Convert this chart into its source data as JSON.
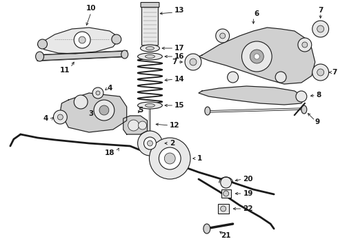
{
  "background_color": "#ffffff",
  "fig_width": 4.9,
  "fig_height": 3.6,
  "dpi": 100,
  "line_color": "#1a1a1a",
  "fill_light": "#e8e8e8",
  "fill_mid": "#d0d0d0",
  "fill_dark": "#b0b0b0",
  "label_fontsize": 7.5,
  "arrow_lw": 0.6
}
